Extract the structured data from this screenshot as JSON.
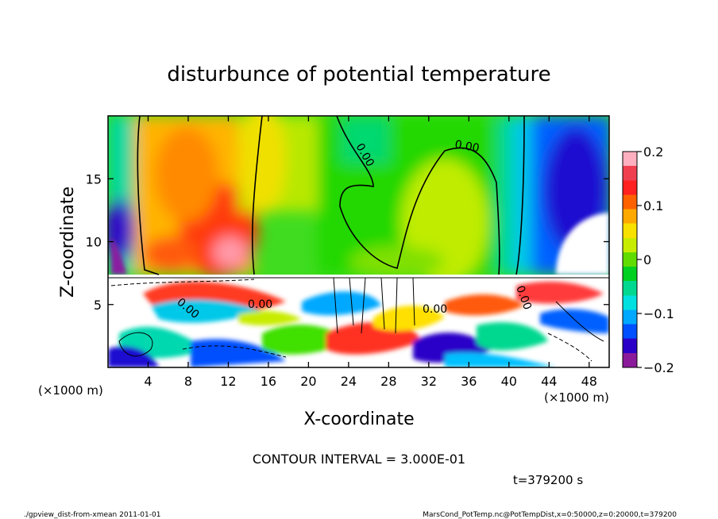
{
  "chart_data": {
    "type": "heatmap",
    "title": "disturbunce of potential temperature",
    "xlabel": "X-coordinate",
    "ylabel": "Z-coordinate",
    "x_unit_left": "(×1000 m)",
    "x_unit_right": "(×1000 m)",
    "xlim": [
      0,
      50
    ],
    "ylim": [
      0,
      20
    ],
    "xticks": [
      "4",
      "8",
      "12",
      "16",
      "20",
      "24",
      "28",
      "32",
      "36",
      "40",
      "44",
      "48"
    ],
    "xtick_values": [
      4,
      8,
      12,
      16,
      20,
      24,
      28,
      32,
      36,
      40,
      44,
      48
    ],
    "yticks": [
      "5",
      "10",
      "15"
    ],
    "ytick_values": [
      5,
      10,
      15
    ],
    "colorbar": {
      "range": [
        -0.2,
        0.2
      ],
      "ticks": [
        "0.2",
        "0.1",
        "0",
        "−0.1",
        "−0.2"
      ],
      "tick_values": [
        0.2,
        0.1,
        0,
        -0.1,
        -0.2
      ],
      "colors": [
        "#8b1a9a",
        "#2a00c8",
        "#0050ff",
        "#00a8ff",
        "#00e0e0",
        "#00d890",
        "#00d020",
        "#60dc00",
        "#c8ec00",
        "#f8e000",
        "#ffa800",
        "#ff6000",
        "#ff2020",
        "#f04050",
        "#ffb0c0"
      ]
    },
    "contour_labels": [
      "0.00",
      "0.00",
      "0.00",
      "0.00",
      "0.00",
      "0.00"
    ],
    "contour_interval_text": "CONTOUR INTERVAL = 3.000E-01",
    "time_text": "t=379200 s"
  },
  "footer": {
    "left": "./gpview_dist-from-xmean  2011-01-01",
    "right": "MarsCond_PotTemp.nc@PotTempDist,x=0:50000,z=0:20000,t=379200"
  }
}
